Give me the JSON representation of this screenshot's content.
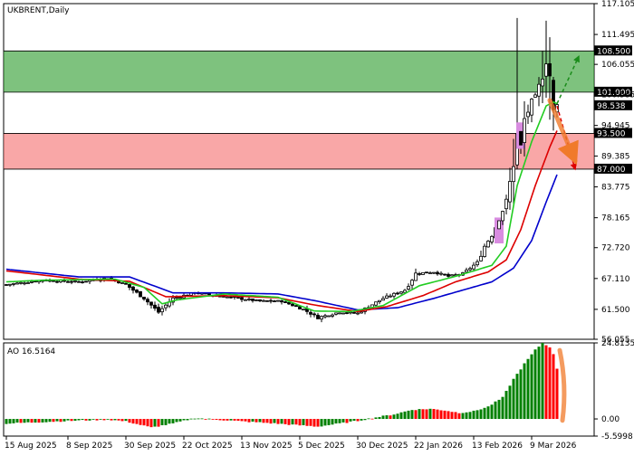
{
  "chart_data": {
    "type": "candlestick",
    "title": "UKBRENT,Daily",
    "colors": {
      "bull_candle": "#000000",
      "bear_candle": "#000000",
      "ma_fast": "#22cc22",
      "ma_mid": "#dd0000",
      "ma_slow": "#0000cc",
      "resistance_zone": "#2e9c2e",
      "support_zone": "#f56d6d",
      "ao_up": "#008000",
      "ao_down": "#ff0000",
      "highlight_candle": "#d88ce0",
      "forecast_arrow": "#f07a2a",
      "up_arrow": "#1a8c1a",
      "down_arrow": "#dd0000"
    },
    "price_axis": {
      "ylim": [
        56.055,
        117.105
      ],
      "ticks": [
        "117.105",
        "111.495",
        "106.055",
        "100.585",
        "94.945",
        "89.385",
        "83.775",
        "78.165",
        "72.720",
        "67.110",
        "61.500",
        "56.055"
      ],
      "tick_values": [
        117.105,
        111.495,
        106.055,
        100.585,
        94.945,
        89.385,
        83.775,
        78.165,
        72.72,
        67.11,
        61.5,
        56.055
      ]
    },
    "levels": [
      {
        "value": 108.5,
        "label": "108.500"
      },
      {
        "value": 101.0,
        "label": "101.000"
      },
      {
        "value": 93.5,
        "label": "93.500"
      },
      {
        "value": 87.0,
        "label": "87.000"
      }
    ],
    "current_price": {
      "value": 98.538,
      "label": "98.538"
    },
    "zones": [
      {
        "name": "resistance",
        "from": 101.0,
        "to": 108.5
      },
      {
        "name": "support",
        "from": 87.0,
        "to": 93.5
      }
    ],
    "x_labels": [
      {
        "label": "15 Aug 2025",
        "index": 0
      },
      {
        "label": "8 Sep 2025",
        "index": 17
      },
      {
        "label": "30 Sep 2025",
        "index": 33
      },
      {
        "label": "22 Oct 2025",
        "index": 49
      },
      {
        "label": "13 Nov 2025",
        "index": 65
      },
      {
        "label": "5 Dec 2025",
        "index": 81
      },
      {
        "label": "30 Dec 2025",
        "index": 97
      },
      {
        "label": "22 Jan 2026",
        "index": 113
      },
      {
        "label": "13 Feb 2026",
        "index": 129
      },
      {
        "label": "9 Mar 2026",
        "index": 145
      }
    ],
    "close_keypoints": [
      [
        0,
        66.0
      ],
      [
        10,
        66.8
      ],
      [
        20,
        66.5
      ],
      [
        28,
        67.2
      ],
      [
        33,
        66.0
      ],
      [
        38,
        63.5
      ],
      [
        42,
        61.0
      ],
      [
        46,
        63.5
      ],
      [
        52,
        64.5
      ],
      [
        58,
        64.0
      ],
      [
        64,
        63.5
      ],
      [
        70,
        63.0
      ],
      [
        76,
        63.0
      ],
      [
        82,
        61.5
      ],
      [
        86,
        60.0
      ],
      [
        92,
        61.0
      ],
      [
        97,
        60.8
      ],
      [
        100,
        62.0
      ],
      [
        104,
        63.5
      ],
      [
        110,
        65.0
      ],
      [
        113,
        68.0
      ],
      [
        118,
        68.3
      ],
      [
        122,
        67.5
      ],
      [
        126,
        68.0
      ],
      [
        130,
        70.0
      ],
      [
        132,
        73.0
      ],
      [
        134,
        75.0
      ],
      [
        136,
        78.0
      ],
      [
        138,
        81.0
      ],
      [
        140,
        88.0
      ],
      [
        141,
        93.0
      ],
      [
        142,
        91.0
      ],
      [
        143,
        96.0
      ],
      [
        145,
        99.0
      ],
      [
        146,
        100.0
      ],
      [
        148,
        104.0
      ],
      [
        149,
        107.0
      ],
      [
        150,
        104.0
      ],
      [
        151,
        97.0
      ],
      [
        152,
        98.538
      ]
    ],
    "spikes": [
      {
        "index": 141,
        "high": 114.5,
        "low": 87.0
      },
      {
        "index": 140,
        "high": 92.5,
        "low": 80.0
      },
      {
        "index": 149,
        "high": 114.0,
        "low": 100.0
      },
      {
        "index": 148,
        "high": 108.5,
        "low": 99.0
      },
      {
        "index": 150,
        "high": 111.0,
        "low": 96.0
      }
    ],
    "highlight_candles": [
      {
        "index": 136,
        "open": 73.5,
        "close": 78.2
      },
      {
        "index": 142,
        "open": 90.7,
        "close": 95.5
      }
    ],
    "ma_keypoints": {
      "fast": [
        [
          0,
          66.5
        ],
        [
          10,
          66.8
        ],
        [
          30,
          67.0
        ],
        [
          38,
          65.5
        ],
        [
          43,
          62.5
        ],
        [
          47,
          63.2
        ],
        [
          60,
          64.3
        ],
        [
          75,
          63.7
        ],
        [
          85,
          61.2
        ],
        [
          95,
          61.1
        ],
        [
          104,
          62.2
        ],
        [
          114,
          65.8
        ],
        [
          124,
          67.5
        ],
        [
          134,
          69.5
        ],
        [
          138,
          73.0
        ],
        [
          141,
          84.0
        ],
        [
          145,
          92.0
        ],
        [
          149,
          98.5
        ],
        [
          151,
          99.2
        ],
        [
          152,
          98.9
        ]
      ],
      "mid": [
        [
          0,
          68.5
        ],
        [
          20,
          67.0
        ],
        [
          34,
          66.6
        ],
        [
          44,
          63.8
        ],
        [
          60,
          64.0
        ],
        [
          75,
          63.6
        ],
        [
          85,
          62.3
        ],
        [
          97,
          61.1
        ],
        [
          105,
          62.0
        ],
        [
          115,
          64.0
        ],
        [
          124,
          66.5
        ],
        [
          133,
          68.3
        ],
        [
          138,
          70.5
        ],
        [
          142,
          76.0
        ],
        [
          146,
          84.0
        ],
        [
          150,
          91.0
        ],
        [
          152,
          94.0
        ]
      ],
      "slow": [
        [
          0,
          68.8
        ],
        [
          20,
          67.4
        ],
        [
          34,
          67.4
        ],
        [
          46,
          64.5
        ],
        [
          60,
          64.5
        ],
        [
          75,
          64.3
        ],
        [
          85,
          63.1
        ],
        [
          97,
          61.4
        ],
        [
          108,
          61.8
        ],
        [
          118,
          63.5
        ],
        [
          126,
          65.0
        ],
        [
          134,
          66.5
        ],
        [
          140,
          69.0
        ],
        [
          145,
          74.0
        ],
        [
          149,
          81.0
        ],
        [
          152,
          86.0
        ]
      ]
    },
    "total_bars": 153,
    "forecasts": [
      {
        "name": "bullish-path",
        "from": [
          152,
          98.9
        ],
        "to": [
          158,
          107.5
        ],
        "style": "dashed-green"
      },
      {
        "name": "bearish-path",
        "from": [
          152,
          98.5
        ],
        "to": [
          157,
          87.0
        ],
        "style": "dashed-red"
      },
      {
        "name": "main-path",
        "from": [
          150,
          99.5
        ],
        "to": [
          157,
          88.5
        ],
        "style": "orange-thick"
      }
    ],
    "oscillator": {
      "name": "AO",
      "label": "AO 16.5164",
      "ticks": [
        "24.8135",
        "0.00",
        "-5.5998"
      ],
      "tick_values": [
        24.8135,
        0.0,
        -5.5998
      ],
      "ylim": [
        -5.5998,
        24.8135
      ],
      "keypoints": [
        [
          0,
          -1.5
        ],
        [
          10,
          -1.0
        ],
        [
          20,
          -0.5
        ],
        [
          28,
          -0.2
        ],
        [
          33,
          -0.8
        ],
        [
          40,
          -2.8
        ],
        [
          46,
          -1.5
        ],
        [
          52,
          0.3
        ],
        [
          58,
          -0.2
        ],
        [
          65,
          -0.8
        ],
        [
          72,
          -1.3
        ],
        [
          80,
          -2.0
        ],
        [
          86,
          -2.5
        ],
        [
          92,
          -1.5
        ],
        [
          97,
          -0.6
        ],
        [
          102,
          0.5
        ],
        [
          107,
          1.5
        ],
        [
          112,
          3.0
        ],
        [
          117,
          3.3
        ],
        [
          121,
          2.8
        ],
        [
          125,
          2.0
        ],
        [
          129,
          2.5
        ],
        [
          133,
          4.0
        ],
        [
          137,
          7.0
        ],
        [
          140,
          13.0
        ],
        [
          143,
          18.0
        ],
        [
          146,
          22.5
        ],
        [
          148,
          24.8
        ],
        [
          150,
          23.5
        ],
        [
          151,
          21.0
        ],
        [
          152,
          16.5
        ]
      ],
      "forecast": {
        "from": [
          152,
          16.5
        ],
        "to": [
          153,
          -0.5
        ]
      }
    }
  }
}
